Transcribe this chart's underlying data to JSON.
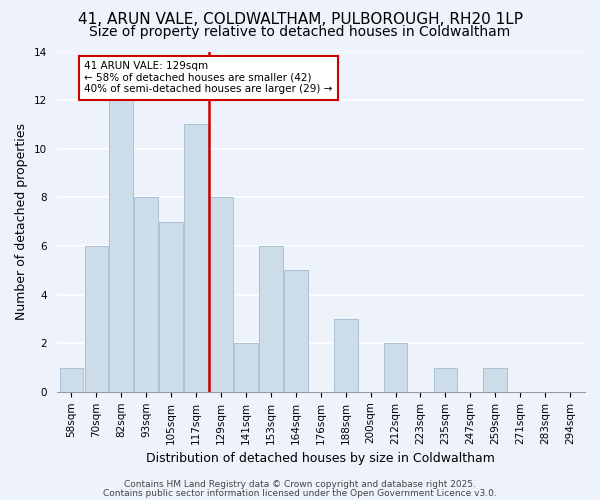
{
  "title": "41, ARUN VALE, COLDWALTHAM, PULBOROUGH, RH20 1LP",
  "subtitle": "Size of property relative to detached houses in Coldwaltham",
  "xlabel": "Distribution of detached houses by size in Coldwaltham",
  "ylabel": "Number of detached properties",
  "bin_labels": [
    "58sqm",
    "70sqm",
    "82sqm",
    "93sqm",
    "105sqm",
    "117sqm",
    "129sqm",
    "141sqm",
    "153sqm",
    "164sqm",
    "176sqm",
    "188sqm",
    "200sqm",
    "212sqm",
    "223sqm",
    "235sqm",
    "247sqm",
    "259sqm",
    "271sqm",
    "283sqm",
    "294sqm"
  ],
  "bar_heights": [
    1,
    6,
    12,
    8,
    7,
    11,
    8,
    2,
    6,
    5,
    0,
    3,
    0,
    2,
    0,
    1,
    0,
    1,
    0,
    0,
    0
  ],
  "highlight_index": 6,
  "bar_color": "#ccdce8",
  "bar_edgecolor": "#aac0d4",
  "highlight_line_color": "#cc0000",
  "background_color": "#eef2fa",
  "annotation_text": "41 ARUN VALE: 129sqm\n← 58% of detached houses are smaller (42)\n40% of semi-detached houses are larger (29) →",
  "annotation_box_edgecolor": "#cc0000",
  "ylim": [
    0,
    14
  ],
  "yticks": [
    0,
    2,
    4,
    6,
    8,
    10,
    12,
    14
  ],
  "footer_line1": "Contains HM Land Registry data © Crown copyright and database right 2025.",
  "footer_line2": "Contains public sector information licensed under the Open Government Licence v3.0.",
  "title_fontsize": 11,
  "subtitle_fontsize": 10,
  "xlabel_fontsize": 9,
  "ylabel_fontsize": 9,
  "tick_fontsize": 7.5,
  "footer_fontsize": 6.5,
  "red_line_x": 5.5
}
